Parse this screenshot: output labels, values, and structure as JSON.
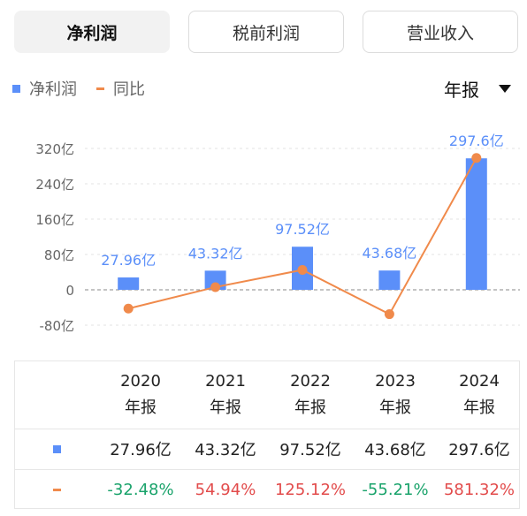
{
  "tabs": [
    {
      "label": "净利润",
      "active": true
    },
    {
      "label": "税前利润",
      "active": false
    },
    {
      "label": "营业收入",
      "active": false
    }
  ],
  "legend": {
    "series1": "净利润",
    "series2": "同比"
  },
  "period_selector": {
    "label": "年报"
  },
  "colors": {
    "bar": "#5b8ff9",
    "line": "#f08a4b",
    "negative": "#1aa36b",
    "positive": "#e24b4b"
  },
  "chart_data": {
    "type": "bar",
    "categories": [
      "2020",
      "2021",
      "2022",
      "2023",
      "2024"
    ],
    "series": [
      {
        "name": "净利润",
        "type": "bar",
        "values": [
          27.96,
          43.32,
          97.52,
          43.68,
          297.6
        ],
        "labels": [
          "27.96亿",
          "43.32亿",
          "97.52亿",
          "43.68亿",
          "297.6亿"
        ]
      },
      {
        "name": "同比",
        "type": "line",
        "values": [
          -32.48,
          54.94,
          125.12,
          -55.21,
          581.32
        ]
      }
    ],
    "y_ticks": [
      "320亿",
      "240亿",
      "160亿",
      "80亿",
      "0",
      "-80亿"
    ],
    "ylim": [
      -80,
      320
    ],
    "grid": true
  },
  "table": {
    "columns": [
      {
        "year": "2020",
        "period": "年报"
      },
      {
        "year": "2021",
        "period": "年报"
      },
      {
        "year": "2022",
        "period": "年报"
      },
      {
        "year": "2023",
        "period": "年报"
      },
      {
        "year": "2024",
        "period": "年报"
      }
    ],
    "profit_row": [
      "27.96亿",
      "43.32亿",
      "97.52亿",
      "43.68亿",
      "297.6亿"
    ],
    "yoy_row": [
      "-32.48%",
      "54.94%",
      "125.12%",
      "-55.21%",
      "581.32%"
    ]
  }
}
